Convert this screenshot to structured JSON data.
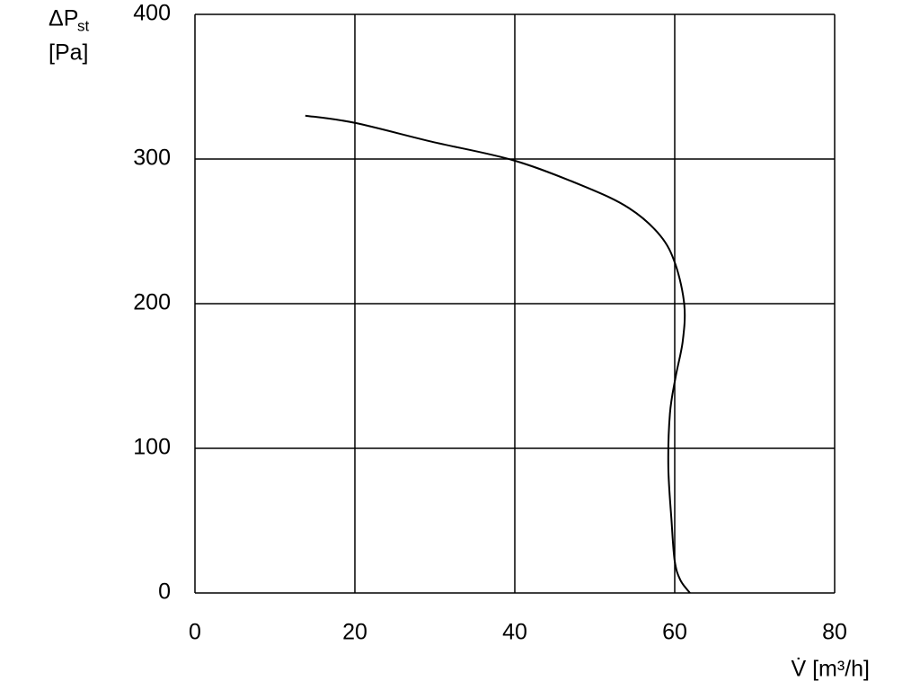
{
  "chart_data": {
    "type": "line",
    "ylabel": "ΔP",
    "ylabel_sub": "st",
    "yunit": "[Pa]",
    "xlabel": "V̇ [m³/h]",
    "x": [
      13.8,
      20,
      29.6,
      39.9,
      48.7,
      54.3,
      58.2,
      60.1,
      61.2,
      61.0,
      60.1,
      59.4,
      59.2,
      59.6,
      60.0,
      60.7,
      61.9
    ],
    "series": [
      {
        "color": "#000000",
        "values": [
          330,
          325,
          312,
          299,
          281,
          266,
          247,
          227,
          199,
          174,
          149,
          124,
          87,
          50,
          22,
          9,
          0
        ]
      }
    ],
    "xlim": [
      0,
      80
    ],
    "xticks": [
      0,
      20,
      40,
      60,
      80
    ],
    "ylim": [
      0,
      400
    ],
    "yticks": [
      0,
      100,
      200,
      300,
      400
    ],
    "grid": true
  }
}
